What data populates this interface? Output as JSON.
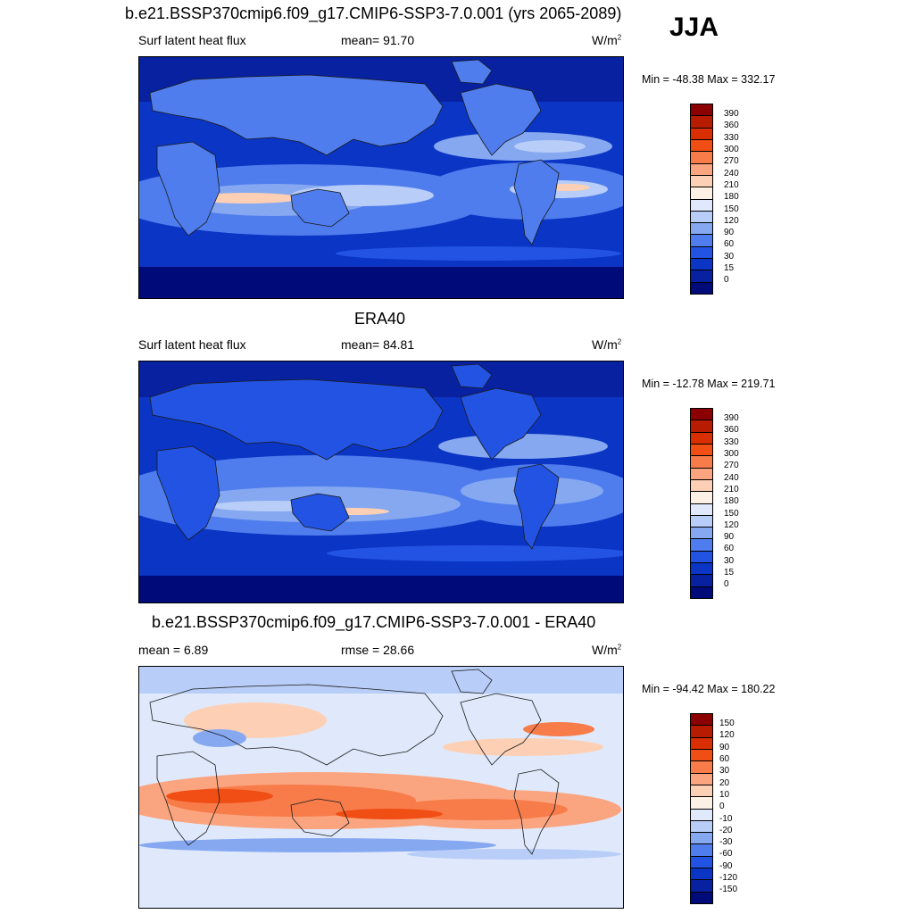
{
  "season": "JJA",
  "panels": [
    {
      "title": "b.e21.BSSP370cmip6.f09_g17.CMIP6-SSP3-7.0.001 (yrs 2065-2089)",
      "left_label": "Surf latent heat flux",
      "center_label": "mean=  91.70",
      "units": "W/m",
      "units_sup": "2",
      "minmax": "Min = -48.38 Max = 332.17",
      "scale": "abs",
      "mean": 91.7,
      "min": -48.38,
      "max": 332.17
    },
    {
      "title": "ERA40",
      "left_label": "Surf latent heat flux",
      "center_label": "mean=  84.81",
      "units": "W/m",
      "units_sup": "2",
      "minmax": "Min = -12.78 Max = 219.71",
      "scale": "abs",
      "mean": 84.81,
      "min": -12.78,
      "max": 219.71
    },
    {
      "title": "b.e21.BSSP370cmip6.f09_g17.CMIP6-SSP3-7.0.001 - ERA40",
      "left_label": "mean =   6.89",
      "center_label": "rmse =  28.66",
      "units": "W/m",
      "units_sup": "2",
      "minmax": "Min = -94.42 Max = 180.22",
      "scale": "diff",
      "mean": 6.89,
      "rmse": 28.66,
      "min": -94.42,
      "max": 180.22
    }
  ],
  "colorbars": {
    "abs": {
      "levels": [
        "390",
        "360",
        "330",
        "300",
        "270",
        "240",
        "210",
        "180",
        "150",
        "120",
        "90",
        "60",
        "30",
        "15",
        "0"
      ],
      "colors": [
        "#8b0000",
        "#b81c00",
        "#d92e00",
        "#f04e14",
        "#f77c4a",
        "#fba580",
        "#fdd0b5",
        "#fdf0e4",
        "#dfe9fb",
        "#b8cdf7",
        "#85a8f1",
        "#4f7ded",
        "#2353e2",
        "#0b35c4",
        "#0821a0",
        "#000b7a"
      ]
    },
    "diff": {
      "levels": [
        "150",
        "120",
        "90",
        "60",
        "30",
        "20",
        "10",
        "0",
        "-10",
        "-20",
        "-30",
        "-60",
        "-90",
        "-120",
        "-150"
      ],
      "colors": [
        "#8b0000",
        "#b81c00",
        "#d92e00",
        "#f04e14",
        "#f77c4a",
        "#fba580",
        "#fdd0b5",
        "#fdf0e4",
        "#dfe9fb",
        "#b8cdf7",
        "#85a8f1",
        "#4f7ded",
        "#2353e2",
        "#0b35c4",
        "#0821a0",
        "#000b7a"
      ]
    }
  }
}
